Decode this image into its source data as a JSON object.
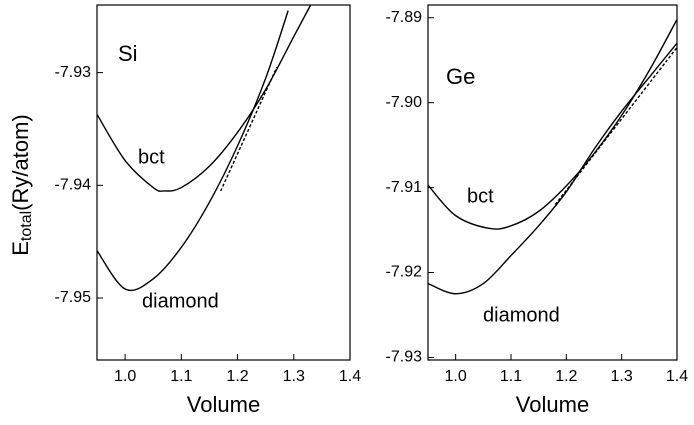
{
  "ylabel": {
    "main": "E",
    "sub": "total",
    "rest": "(Ry/atom)"
  },
  "chart_data": [
    {
      "type": "line",
      "panel_label": "Si",
      "xlabel": "Volume",
      "xlim": [
        0.95,
        1.4
      ],
      "ylim": [
        -7.9555,
        -7.924
      ],
      "xticks": [
        {
          "value": 1,
          "label": "1.0"
        },
        1.1,
        1.2,
        1.3,
        1.4
      ],
      "yticks": [
        -7.93,
        -7.94,
        -7.95
      ],
      "series": [
        {
          "name": "bct",
          "color": "#000000",
          "x": [
            0.95,
            1.0,
            1.05,
            1.07,
            1.1,
            1.15,
            1.2,
            1.25,
            1.3,
            1.33
          ],
          "values": [
            -7.9337,
            -7.9378,
            -7.9402,
            -7.9405,
            -7.9402,
            -7.9383,
            -7.9353,
            -7.9315,
            -7.9268,
            -7.924
          ]
        },
        {
          "name": "diamond",
          "color": "#000000",
          "x": [
            0.95,
            1.0,
            1.05,
            1.1,
            1.15,
            1.2,
            1.25,
            1.29
          ],
          "values": [
            -7.9458,
            -7.9492,
            -7.9483,
            -7.9455,
            -7.9415,
            -7.9365,
            -7.9305,
            -7.9245
          ]
        },
        {
          "dash": true,
          "color": "#000000",
          "x": [
            1.17,
            1.27
          ],
          "values": [
            -7.9405,
            -7.9295
          ]
        }
      ]
    },
    {
      "type": "line",
      "panel_label": "Ge",
      "xlabel": "Volume",
      "xlim": [
        0.95,
        1.4
      ],
      "ylim": [
        -7.9303,
        -7.8885
      ],
      "xticks": [
        {
          "value": 1,
          "label": "1.0"
        },
        1.1,
        1.2,
        1.3,
        1.4
      ],
      "yticks": [
        -7.89,
        {
          "value": -7.9,
          "label": "-7.90"
        },
        -7.91,
        -7.92,
        -7.93
      ],
      "series": [
        {
          "name": "bct",
          "color": "#000000",
          "x": [
            0.95,
            1.0,
            1.06,
            1.1,
            1.15,
            1.2,
            1.25,
            1.3,
            1.35,
            1.4
          ],
          "values": [
            -7.9097,
            -7.9133,
            -7.9148,
            -7.9145,
            -7.9128,
            -7.9098,
            -7.906,
            -7.9015,
            -7.8962,
            -7.8902
          ]
        },
        {
          "name": "diamond",
          "color": "#000000",
          "x": [
            0.95,
            1.0,
            1.05,
            1.1,
            1.15,
            1.2,
            1.25,
            1.3,
            1.35,
            1.4
          ],
          "values": [
            -7.9213,
            -7.9225,
            -7.9213,
            -7.918,
            -7.9145,
            -7.9105,
            -7.9055,
            -7.901,
            -7.897,
            -7.893
          ]
        },
        {
          "dash": true,
          "color": "#000000",
          "x": [
            1.18,
            1.4
          ],
          "values": [
            -7.912,
            -7.8935
          ]
        }
      ]
    }
  ]
}
